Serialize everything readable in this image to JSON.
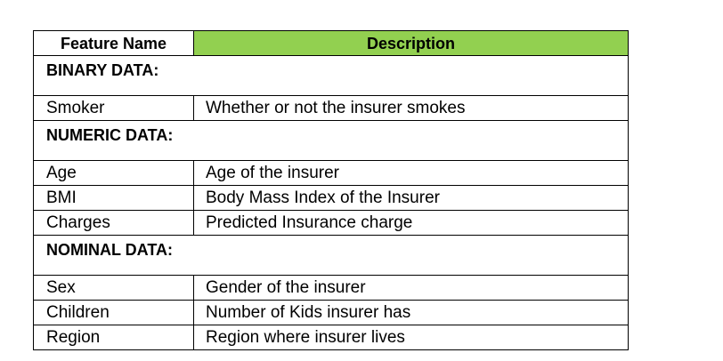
{
  "table": {
    "headers": {
      "feature_name": "Feature Name",
      "description": "Description"
    },
    "header_colors": {
      "description_bg": "#92d050"
    },
    "sections": [
      {
        "title": "BINARY DATA:",
        "rows": [
          {
            "feature": "Smoker",
            "description": "Whether or not the insurer smokes"
          }
        ]
      },
      {
        "title": "NUMERIC DATA:",
        "rows": [
          {
            "feature": "Age",
            "description": "Age of the insurer"
          },
          {
            "feature": "BMI",
            "description": "Body Mass Index of the Insurer"
          },
          {
            "feature": "Charges",
            "description": "Predicted Insurance charge"
          }
        ]
      },
      {
        "title": "NOMINAL DATA:",
        "rows": [
          {
            "feature": "Sex",
            "description": "Gender of the insurer"
          },
          {
            "feature": "Children",
            "description": "Number of Kids insurer has"
          },
          {
            "feature": "Region",
            "description": "Region where insurer lives"
          }
        ]
      }
    ]
  }
}
